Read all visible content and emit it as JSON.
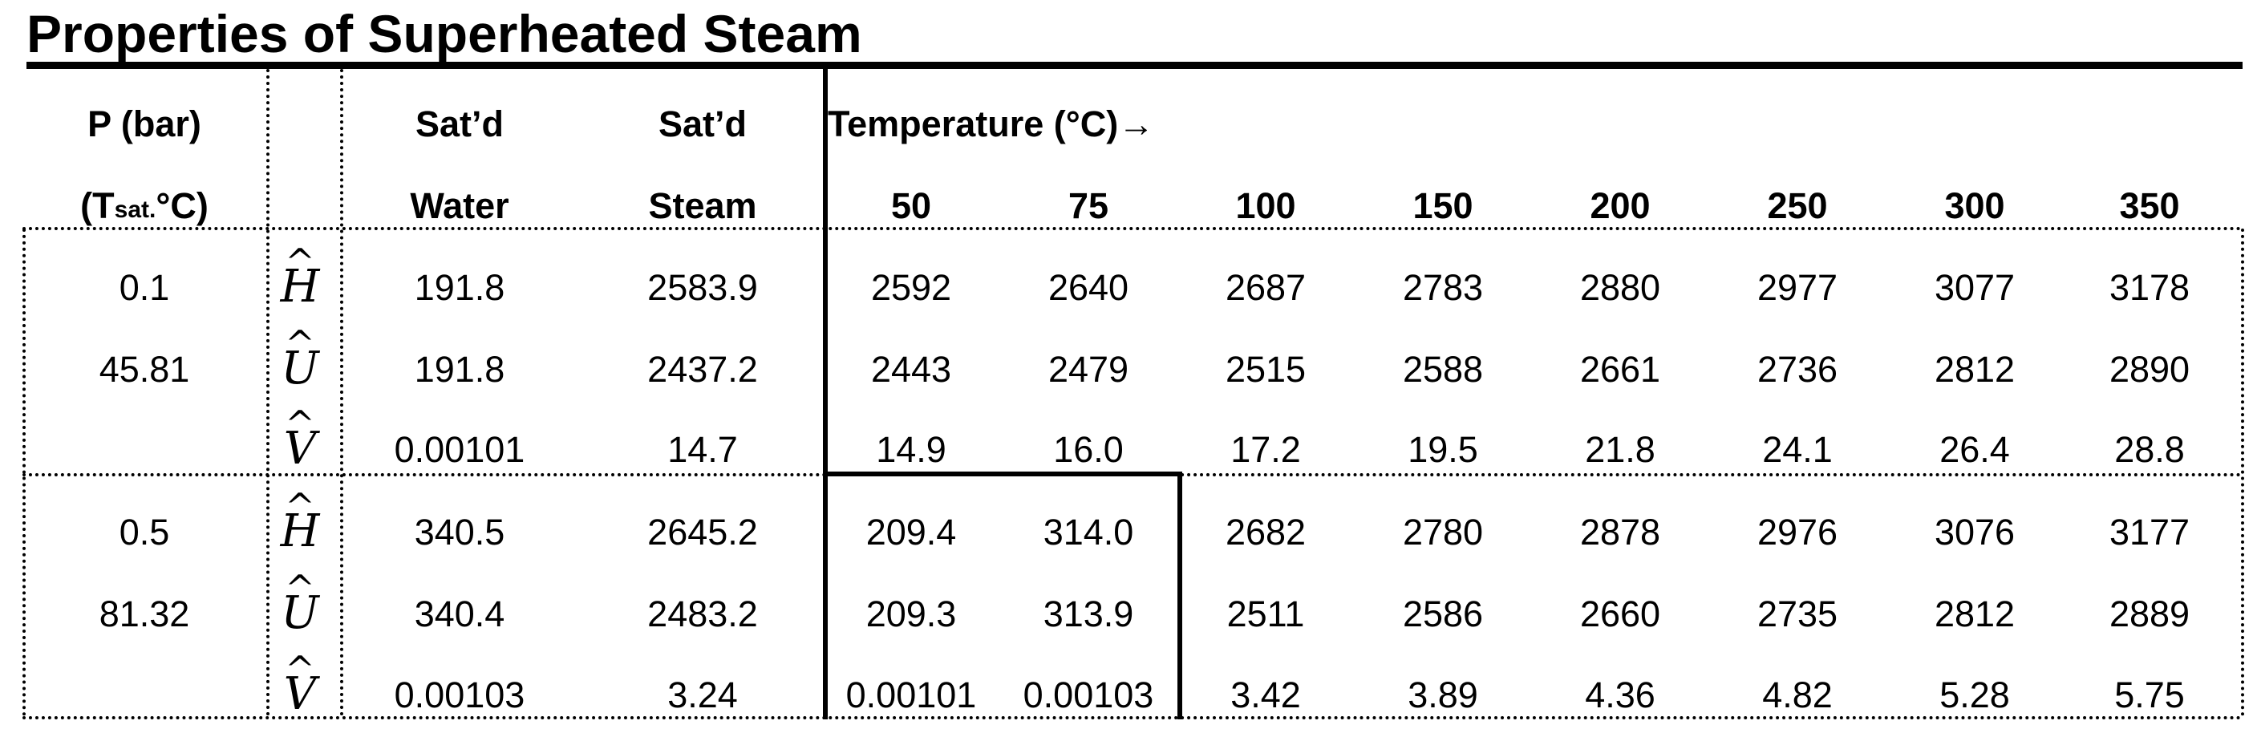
{
  "title": "Properties of Superheated Steam",
  "header": {
    "p_line1": "P (bar)",
    "p_line2_pre": "(T",
    "p_line2_sub": "sat.",
    "p_line2_post": " °C)",
    "satd_water_line1": "Sat’d",
    "satd_water_line2": "Water",
    "satd_steam_line1": "Sat’d",
    "satd_steam_line2": "Steam",
    "temperature_label": "Temperature (°C)→",
    "temperatures": [
      "50",
      "75",
      "100",
      "150",
      "200",
      "250",
      "300",
      "350"
    ]
  },
  "property_symbols": [
    "H",
    "U",
    "V"
  ],
  "groups": [
    {
      "pressure": "0.1",
      "tsat": "45.81",
      "rows": [
        {
          "sat_water": "191.8",
          "sat_steam": "2583.9",
          "values": [
            "2592",
            "2640",
            "2687",
            "2783",
            "2880",
            "2977",
            "3077",
            "3178"
          ]
        },
        {
          "sat_water": "191.8",
          "sat_steam": "2437.2",
          "values": [
            "2443",
            "2479",
            "2515",
            "2588",
            "2661",
            "2736",
            "2812",
            "2890"
          ]
        },
        {
          "sat_water": "0.00101",
          "sat_steam": "14.7",
          "values": [
            "14.9",
            "16.0",
            "17.2",
            "19.5",
            "21.8",
            "24.1",
            "26.4",
            "28.8"
          ]
        }
      ]
    },
    {
      "pressure": "0.5",
      "tsat": "81.32",
      "rows": [
        {
          "sat_water": "340.5",
          "sat_steam": "2645.2",
          "values": [
            "209.4",
            "314.0",
            "2682",
            "2780",
            "2878",
            "2976",
            "3076",
            "3177"
          ]
        },
        {
          "sat_water": "340.4",
          "sat_steam": "2483.2",
          "values": [
            "209.3",
            "313.9",
            "2511",
            "2586",
            "2660",
            "2735",
            "2812",
            "2889"
          ]
        },
        {
          "sat_water": "0.00103",
          "sat_steam": "3.24",
          "values": [
            "0.00101",
            "0.00103",
            "3.42",
            "3.89",
            "4.36",
            "4.82",
            "5.28",
            "5.75"
          ]
        }
      ]
    }
  ]
}
